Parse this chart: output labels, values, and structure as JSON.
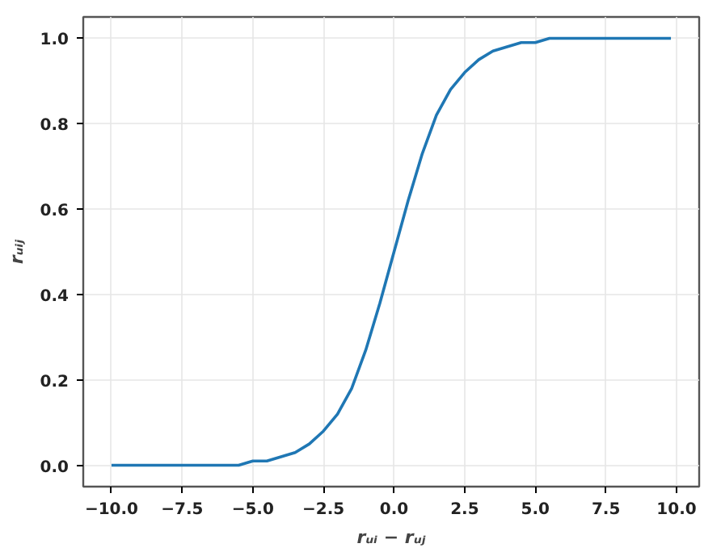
{
  "chart_data": {
    "type": "line",
    "xlabel": "rᵤᵢ − rᵤⱼ",
    "ylabel": "rᵤᵢⱼ",
    "x": [
      -10,
      -9.5,
      -9,
      -8.5,
      -8,
      -7.5,
      -7,
      -6.5,
      -6,
      -5.5,
      -5,
      -4.5,
      -4,
      -3.5,
      -3,
      -2.5,
      -2,
      -1.5,
      -1,
      -0.5,
      0,
      0.5,
      1,
      1.5,
      2,
      2.5,
      3,
      3.5,
      4,
      4.5,
      5,
      5.5,
      6,
      6.5,
      7,
      7.5,
      8,
      8.5,
      9,
      9.5,
      9.8
    ],
    "series": [
      {
        "color": "#1f77b4",
        "values": [
          0,
          0,
          0,
          0,
          0,
          0,
          0,
          0,
          0,
          0,
          0.01,
          0.01,
          0.02,
          0.03,
          0.05,
          0.08,
          0.12,
          0.18,
          0.27,
          0.38,
          0.5,
          0.62,
          0.73,
          0.82,
          0.88,
          0.92,
          0.95,
          0.97,
          0.98,
          0.99,
          0.99,
          1,
          1,
          1,
          1,
          1,
          1,
          1,
          1,
          1,
          1
        ]
      }
    ],
    "xlim": [
      -11,
      10.8
    ],
    "ylim": [
      -0.05,
      1.05
    ],
    "xticks": [
      {
        "value": -10,
        "label": "−10.0"
      },
      {
        "value": -7.5,
        "label": "−7.5"
      },
      {
        "value": -5,
        "label": "−5.0"
      },
      {
        "value": -2.5,
        "label": "−2.5"
      },
      {
        "value": 0,
        "label": "0.0"
      },
      {
        "value": 2.5,
        "label": "2.5"
      },
      {
        "value": 5,
        "label": "5.0"
      },
      {
        "value": 7.5,
        "label": "7.5"
      },
      {
        "value": 10,
        "label": "10.0"
      }
    ],
    "yticks": [
      {
        "value": 0,
        "label": "0.0"
      },
      {
        "value": 0.2,
        "label": "0.2"
      },
      {
        "value": 0.4,
        "label": "0.4"
      },
      {
        "value": 0.6,
        "label": "0.6"
      },
      {
        "value": 0.8,
        "label": "0.8"
      },
      {
        "value": 1,
        "label": "1.0"
      }
    ],
    "grid": true,
    "marker": "none",
    "line_style": "solid"
  }
}
